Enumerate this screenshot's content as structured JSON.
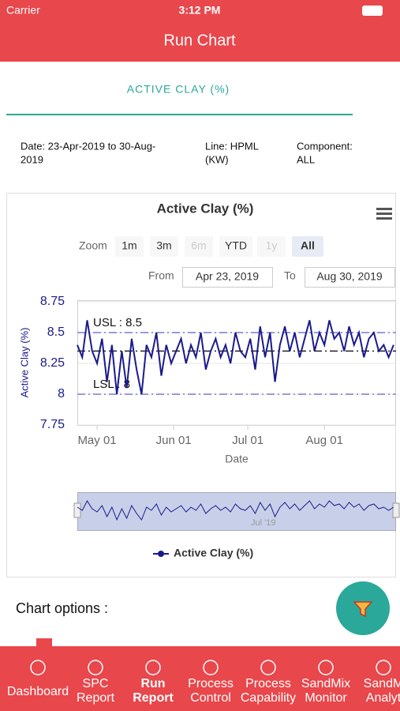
{
  "status_bar": {
    "carrier": "Carrier",
    "time": "3:12 PM"
  },
  "header": {
    "title": "Run Chart"
  },
  "tab": {
    "label": "ACTIVE CLAY (%)"
  },
  "info": {
    "date": [
      "Date: 23-Apr-2019 to 30-Aug-",
      "2019"
    ],
    "line": [
      "Line: HPML",
      "(KW)"
    ],
    "component": [
      "Component:",
      "ALL"
    ]
  },
  "chart_data": {
    "type": "line",
    "title": "Active Clay (%)",
    "zoom": {
      "label": "Zoom",
      "buttons": [
        {
          "label": "1m",
          "state": "enabled"
        },
        {
          "label": "3m",
          "state": "enabled"
        },
        {
          "label": "6m",
          "state": "disabled"
        },
        {
          "label": "YTD",
          "state": "enabled"
        },
        {
          "label": "1y",
          "state": "disabled"
        },
        {
          "label": "All",
          "state": "selected"
        }
      ]
    },
    "range": {
      "from_label": "From",
      "from": "Apr 23, 2019",
      "to_label": "To",
      "to": "Aug 30, 2019"
    },
    "y_label": "Active Clay (%)",
    "x_label": "Date",
    "ylim": [
      7.75,
      8.75
    ],
    "yticks": [
      7.75,
      8,
      8.25,
      8.5,
      8.75
    ],
    "xlim": [
      "2019-04-23",
      "2019-08-30"
    ],
    "xticks": [
      {
        "value": "2019-05-01",
        "label": "May 01"
      },
      {
        "value": "2019-06-01",
        "label": "Jun 01"
      },
      {
        "value": "2019-07-01",
        "label": "Jul 01"
      },
      {
        "value": "2019-08-01",
        "label": "Aug 01"
      }
    ],
    "grid": true,
    "limits": [
      {
        "value": 8.5,
        "label": "USL : 8.5"
      },
      {
        "value": 8,
        "label": "LSL : 8"
      }
    ],
    "center_line": 8.35,
    "navigator_label": "Jul '19",
    "x": [
      "2019-04-23",
      "2019-04-25",
      "2019-04-27",
      "2019-04-29",
      "2019-05-01",
      "2019-05-03",
      "2019-05-05",
      "2019-05-07",
      "2019-05-09",
      "2019-05-11",
      "2019-05-13",
      "2019-05-15",
      "2019-05-17",
      "2019-05-19",
      "2019-05-21",
      "2019-05-23",
      "2019-05-25",
      "2019-05-27",
      "2019-05-29",
      "2019-05-31",
      "2019-06-02",
      "2019-06-04",
      "2019-06-06",
      "2019-06-08",
      "2019-06-10",
      "2019-06-12",
      "2019-06-14",
      "2019-06-16",
      "2019-06-18",
      "2019-06-20",
      "2019-06-22",
      "2019-06-24",
      "2019-06-26",
      "2019-06-28",
      "2019-06-30",
      "2019-07-02",
      "2019-07-04",
      "2019-07-06",
      "2019-07-08",
      "2019-07-10",
      "2019-07-12",
      "2019-07-14",
      "2019-07-16",
      "2019-07-18",
      "2019-07-20",
      "2019-07-22",
      "2019-07-24",
      "2019-07-26",
      "2019-07-28",
      "2019-07-30",
      "2019-08-01",
      "2019-08-03",
      "2019-08-05",
      "2019-08-07",
      "2019-08-09",
      "2019-08-11",
      "2019-08-13",
      "2019-08-15",
      "2019-08-17",
      "2019-08-19",
      "2019-08-21",
      "2019-08-23",
      "2019-08-25",
      "2019-08-27",
      "2019-08-29"
    ],
    "series": [
      {
        "name": "Active Clay (%)",
        "color": "#1a1a8c",
        "values": [
          8.4,
          8.3,
          8.6,
          8.35,
          8.25,
          8.45,
          8.1,
          8.4,
          8.0,
          8.35,
          8.05,
          8.45,
          8.2,
          8.0,
          8.4,
          8.3,
          8.5,
          8.15,
          8.4,
          8.25,
          8.35,
          8.45,
          8.25,
          8.4,
          8.3,
          8.5,
          8.2,
          8.35,
          8.45,
          8.3,
          8.4,
          8.25,
          8.5,
          8.35,
          8.3,
          8.45,
          8.2,
          8.55,
          8.3,
          8.5,
          8.1,
          8.4,
          8.55,
          8.35,
          8.5,
          8.3,
          8.45,
          8.6,
          8.35,
          8.5,
          8.4,
          8.6,
          8.45,
          8.5,
          8.35,
          8.55,
          8.4,
          8.5,
          8.3,
          8.45,
          8.5,
          8.35,
          8.4,
          8.3,
          8.4
        ]
      }
    ]
  },
  "chart_options": {
    "title": "Chart options :"
  },
  "nav": [
    [
      "Dashboard"
    ],
    [
      "SPC",
      "Report"
    ],
    [
      "Run",
      "Report"
    ],
    [
      "Process",
      "Control"
    ],
    [
      "Process",
      "Capability"
    ],
    [
      "SandMix",
      "Monitor"
    ],
    [
      "SandM",
      "Analyt"
    ]
  ]
}
